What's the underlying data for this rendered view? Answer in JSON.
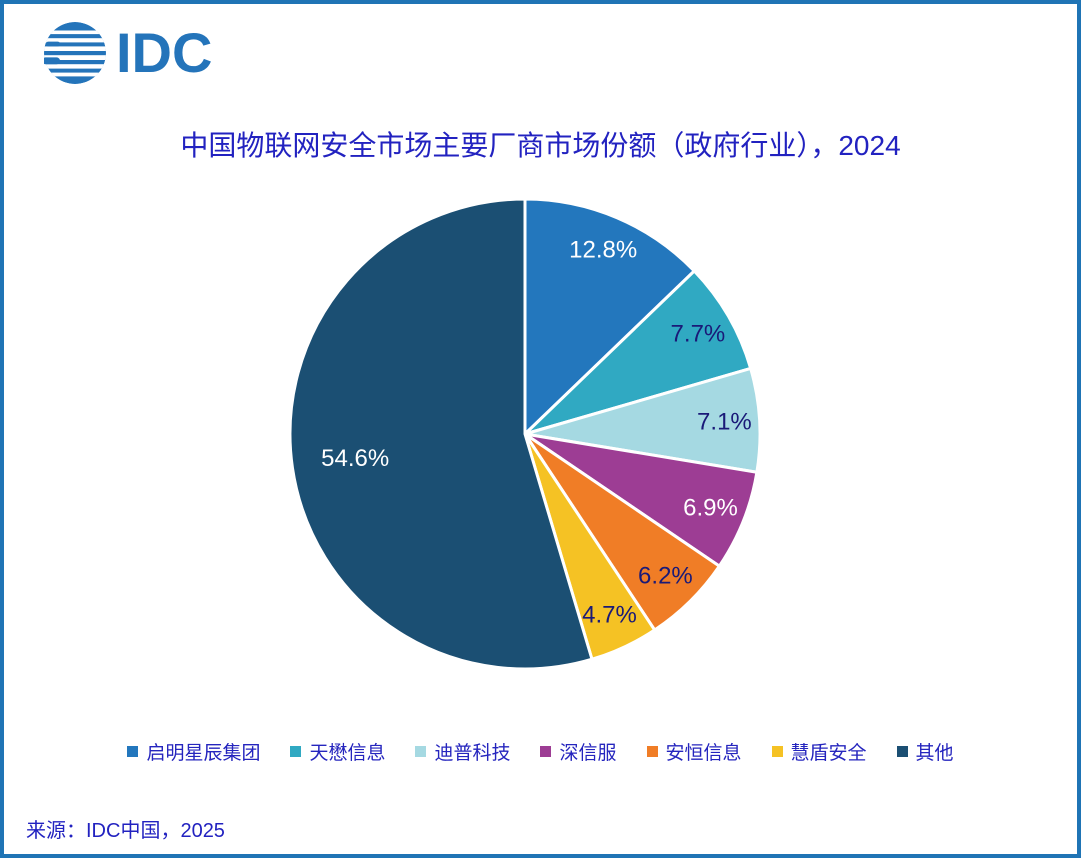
{
  "logo": {
    "text": "IDC",
    "color": "#2474BA"
  },
  "title": {
    "text": "中国物联网安全市场主要厂商市场份额（政府行业），2024",
    "color": "#2222C0"
  },
  "source": {
    "text": "来源：IDC中国，2025"
  },
  "chart_data": {
    "type": "pie",
    "title": "中国物联网安全市场主要厂商市场份额（政府行业），2024",
    "start_angle_deg": 0,
    "direction": "clockwise",
    "categories": [
      "启明星辰集团",
      "天懋信息",
      "迪普科技",
      "深信服",
      "安恒信息",
      "慧盾安全",
      "其他"
    ],
    "values": [
      12.8,
      7.7,
      7.1,
      6.9,
      6.2,
      4.7,
      54.6
    ],
    "labels": [
      "12.8%",
      "7.7%",
      "7.1%",
      "6.9%",
      "6.2%",
      "4.7%",
      "54.6%"
    ],
    "colors": [
      "#2377BD",
      "#30A9C2",
      "#A5D9E2",
      "#9D3D94",
      "#F07D26",
      "#F5C224",
      "#1B4F73"
    ],
    "label_colors": [
      "#FFFFFF",
      "#1A1A78",
      "#1A1A78",
      "#FFFFFF",
      "#1A1A78",
      "#1A1A78",
      "#FFFFFF"
    ],
    "slice_border_color": "#FFFFFF",
    "legend_position": "bottom",
    "legend_text_color": "#2525BE"
  }
}
